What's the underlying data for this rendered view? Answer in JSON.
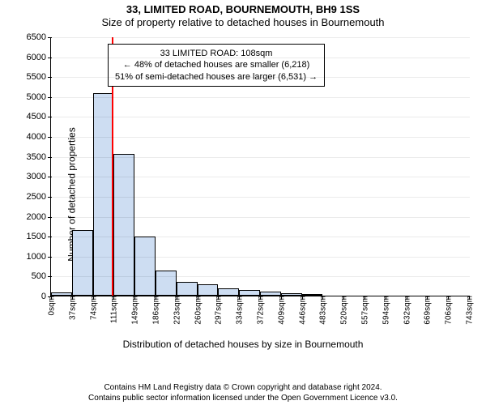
{
  "title": {
    "line1": "33, LIMITED ROAD, BOURNEMOUTH, BH9 1SS",
    "line2": "Size of property relative to detached houses in Bournemouth"
  },
  "y_axis": {
    "label": "Number of detached properties",
    "min": 0,
    "max": 6500,
    "ticks": [
      0,
      500,
      1000,
      1500,
      2000,
      2500,
      3000,
      3500,
      4000,
      4500,
      5000,
      5500,
      6000,
      6500
    ]
  },
  "x_axis": {
    "label": "Distribution of detached houses by size in Bournemouth",
    "tick_labels": [
      "0sqm",
      "37sqm",
      "74sqm",
      "111sqm",
      "149sqm",
      "186sqm",
      "223sqm",
      "260sqm",
      "297sqm",
      "334sqm",
      "372sqm",
      "409sqm",
      "446sqm",
      "483sqm",
      "520sqm",
      "557sqm",
      "594sqm",
      "632sqm",
      "669sqm",
      "706sqm",
      "743sqm"
    ],
    "domain_max": 743
  },
  "bars": {
    "bin_width": 37,
    "values": [
      80,
      1650,
      5080,
      3550,
      1480,
      620,
      350,
      290,
      180,
      140,
      100,
      70,
      50,
      0,
      0,
      0,
      0,
      0,
      0,
      0
    ],
    "fill": "#cdddf2",
    "stroke": "#000000",
    "stroke_width": 0.5
  },
  "marker": {
    "value_sqm": 108,
    "color": "#ff0000"
  },
  "callout": {
    "line1": "33 LIMITED ROAD: 108sqm",
    "line2": "← 48% of detached houses are smaller (6,218)",
    "line3": "51% of semi-detached houses are larger (6,531) →"
  },
  "footer": {
    "line1": "Contains HM Land Registry data © Crown copyright and database right 2024.",
    "line2": "Contains public sector information licensed under the Open Government Licence v3.0."
  },
  "style": {
    "background": "#ffffff",
    "axis_color": "#000000",
    "text_color": "#000000",
    "title_fontsize": 13,
    "label_fontsize": 12,
    "tick_fontsize": 11
  }
}
